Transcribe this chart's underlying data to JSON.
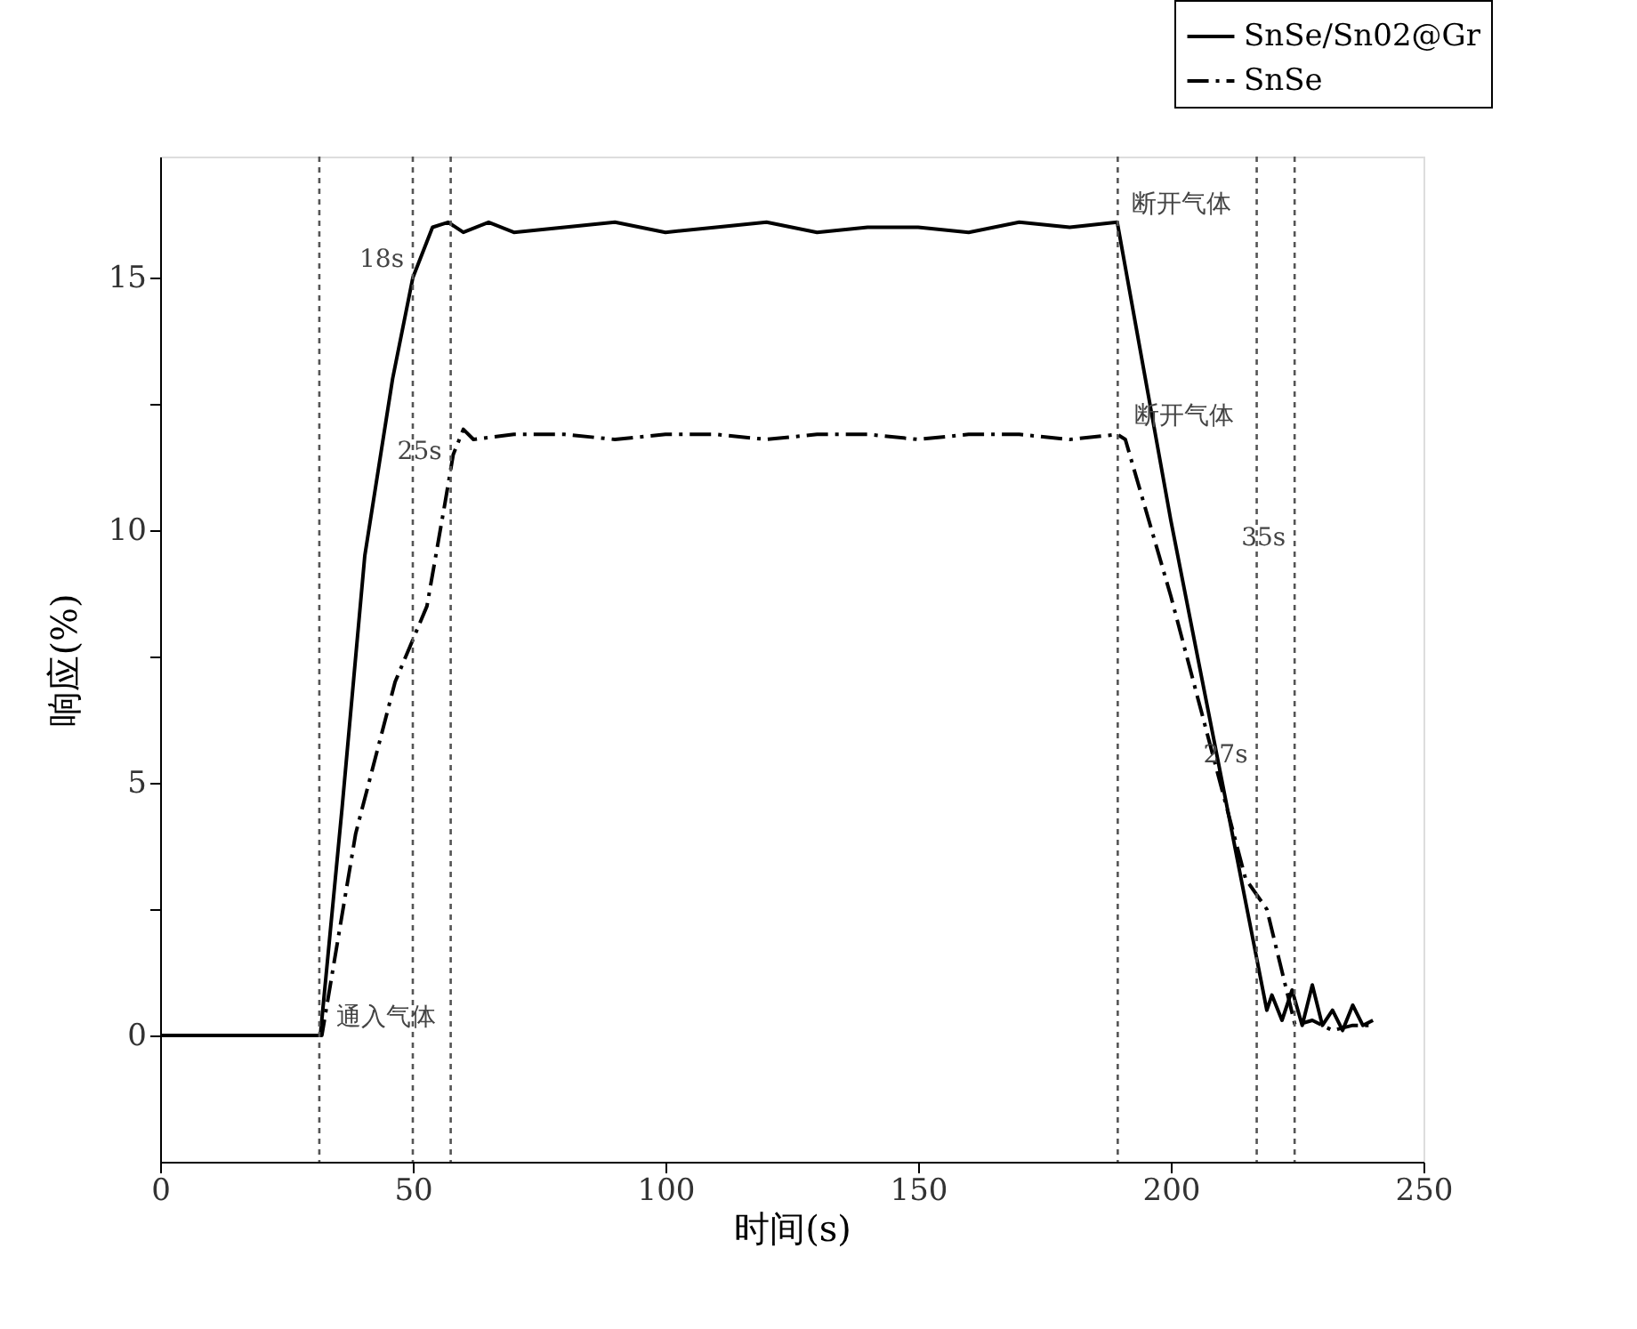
{
  "chart_data": {
    "type": "line",
    "xlabel": "时间(s)",
    "ylabel": "响应(%)",
    "xlim": [
      0,
      250
    ],
    "xticks": [
      0,
      50,
      100,
      150,
      200,
      250
    ],
    "ylim": [
      -2.5,
      17.4
    ],
    "yticks": [
      0,
      {
        "value": 2.5,
        "label": null
      },
      5,
      {
        "value": 7.5,
        "label": null
      },
      10,
      {
        "value": 12.5,
        "label": null
      },
      15
    ],
    "grid": false,
    "legend": "top right",
    "marker": "none",
    "series": [
      {
        "name": "SnSe/Sn02@Gr",
        "color": "#000000",
        "line_style": "solid",
        "x": [
          0,
          31.7,
          36,
          40.5,
          46,
          50,
          53.9,
          57,
          60,
          65,
          70,
          80,
          90,
          100,
          110,
          120,
          130,
          140,
          150,
          160,
          170,
          180,
          189.4,
          200,
          210,
          219,
          220,
          222,
          224,
          226,
          228,
          230,
          232,
          234,
          236,
          238,
          240
        ],
        "values": [
          0,
          0,
          4.5,
          9.5,
          13,
          15,
          16,
          16.1,
          15.9,
          16.1,
          15.9,
          16,
          16.1,
          15.9,
          16,
          16.1,
          15.9,
          16,
          16,
          15.9,
          16.1,
          16,
          16.1,
          10.2,
          5.1,
          0.5,
          0.8,
          0.3,
          0.9,
          0.2,
          1.0,
          0.2,
          0.5,
          0.1,
          0.6,
          0.2,
          0.3
        ]
      },
      {
        "name": "SnSe",
        "color": "#000000",
        "line_style": "dashed",
        "x": [
          0,
          32,
          38.7,
          46.5,
          52.8,
          56.3,
          58,
          60,
          62,
          70,
          80,
          90,
          100,
          110,
          120,
          130,
          140,
          150,
          160,
          170,
          180,
          189.4,
          191,
          200,
          214.8,
          219,
          224.6,
          228,
          232,
          236,
          240
        ],
        "values": [
          0,
          0,
          4,
          7,
          8.5,
          10.5,
          11.5,
          12,
          11.8,
          11.9,
          11.9,
          11.8,
          11.9,
          11.9,
          11.8,
          11.9,
          11.9,
          11.8,
          11.9,
          11.9,
          11.8,
          11.9,
          11.8,
          8.7,
          3.1,
          2.5,
          0.2,
          0.3,
          0.1,
          0.2,
          0.2
        ]
      }
    ],
    "ref_lines": [
      {
        "axis": "x",
        "value": 31.5,
        "label": null,
        "color": "#555555",
        "line_style": "dotted"
      },
      {
        "axis": "x",
        "value": 50,
        "label": null,
        "color": "#555555",
        "line_style": "dotted"
      },
      {
        "axis": "x",
        "value": 57.5,
        "label": null,
        "color": "#555555",
        "line_style": "dotted"
      },
      {
        "axis": "x",
        "value": 189.5,
        "label": null,
        "color": "#555555",
        "line_style": "dotted"
      },
      {
        "axis": "x",
        "value": 217,
        "label": null,
        "color": "#555555",
        "line_style": "dotted"
      },
      {
        "axis": "x",
        "value": 224.5,
        "label": null,
        "color": "#555555",
        "line_style": "dotted"
      }
    ],
    "annotations": [
      {
        "text": "18s",
        "x": 50,
        "y": 15
      },
      {
        "text": "25s",
        "x": 57.5,
        "y": 11.2
      },
      {
        "text": "35s",
        "x": 224.5,
        "y": 9.5
      },
      {
        "text": "27s",
        "x": 217,
        "y": 5.2
      },
      {
        "text": "通入气体",
        "x": 32,
        "y": 0
      },
      {
        "text": "断开气体",
        "x": 189.4,
        "y": 16.1
      },
      {
        "text": "断开气体",
        "x": 190,
        "y": 11.9
      }
    ]
  }
}
